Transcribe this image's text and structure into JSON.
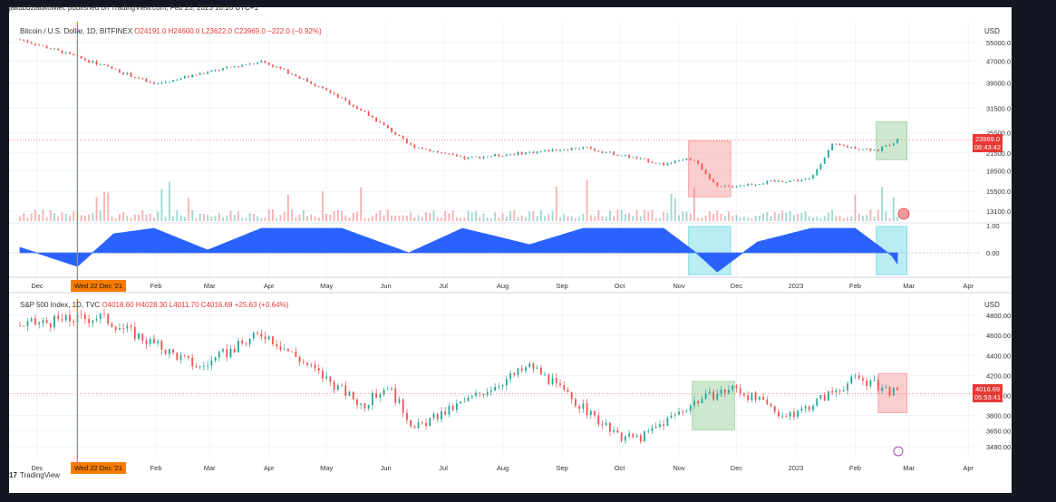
{
  "header": {
    "published": "jakubdzladkowiec published on TradingView.com, Feb 23, 2023 16:16 UTC+1"
  },
  "footer": {
    "brand": "TradingView"
  },
  "marker": {
    "date_label": "Wed 22 Dec '21"
  },
  "colors": {
    "up": "#26a69a",
    "down": "#ef5350",
    "osc": "#2962ff",
    "marker": "#f57c00",
    "red_box": "#f8a5a5",
    "green_box": "#a5d6a7",
    "cyan_box": "#80deea"
  },
  "time_axis": [
    "Dec",
    "Feb",
    "Mar",
    "Apr",
    "May",
    "Jun",
    "Jul",
    "Aug",
    "Sep",
    "Oct",
    "Nov",
    "Dec",
    "2023",
    "Feb",
    "Mar",
    "Apr"
  ],
  "panes": [
    {
      "legend": {
        "name": "Bitcoin / U.S. Dollar, 1D, BITFINEX",
        "o": "O24191.0",
        "h": "H24600.0",
        "l": "L23622.0",
        "c": "C23969.0",
        "chg": "−222.0 (−0.92%)"
      },
      "currency": "USD",
      "last_price": "23969.0",
      "countdown": "08:43:42"
    },
    {
      "legend": {
        "name": "S&P 500 Index, 1D, TVC",
        "o": "O4018.60",
        "h": "H4028.30",
        "l": "L4011.70",
        "c": "C4016.69",
        "chg": "+25.63 (+0.64%)"
      },
      "currency": "USD",
      "last_price": "4016.69",
      "countdown": "05:53:41"
    }
  ],
  "chart_data": [
    {
      "type": "candlestick",
      "title": "Bitcoin / U.S. Dollar, 1D, BITFINEX",
      "scale": "log",
      "y_ticks": [
        "55000.0",
        "47000.0",
        "39000.0",
        "31500.0",
        "25500.0",
        "21500.0",
        "18500.0",
        "15500.0",
        "13100.0"
      ],
      "x": [
        "2021-11-22",
        "2021-12-22",
        "2022-01-31",
        "2022-03-28",
        "2022-05-09",
        "2022-06-13",
        "2022-07-11",
        "2022-09-12",
        "2022-10-24",
        "2022-11-08",
        "2022-11-21",
        "2022-12-19",
        "2023-01-09",
        "2023-01-20",
        "2023-02-13",
        "2023-02-23"
      ],
      "close": [
        56500,
        48500,
        38500,
        47000,
        34000,
        23000,
        20500,
        22500,
        19500,
        20500,
        16000,
        16800,
        17200,
        23000,
        22000,
        23969
      ]
    },
    {
      "type": "line",
      "title": "",
      "y_ticks": [
        "1.00",
        "0.00"
      ],
      "ylim": [
        -0.8,
        1.0
      ],
      "x": [
        "2021-11-22",
        "2021-12-22",
        "2022-01-10",
        "2022-01-31",
        "2022-02-28",
        "2022-03-28",
        "2022-05-09",
        "2022-06-13",
        "2022-07-11",
        "2022-08-15",
        "2022-09-12",
        "2022-10-24",
        "2022-11-10",
        "2022-11-21",
        "2022-12-12",
        "2023-01-09",
        "2023-02-01",
        "2023-02-20",
        "2023-02-23"
      ],
      "values": [
        0.2,
        -0.5,
        0.7,
        0.9,
        0.1,
        0.9,
        0.9,
        0.0,
        0.9,
        0.3,
        0.9,
        0.9,
        0.0,
        -0.7,
        0.4,
        0.9,
        0.9,
        -0.1,
        -0.4
      ]
    },
    {
      "type": "candlestick",
      "title": "S&P 500 Index, 1D, TVC",
      "y_ticks": [
        "4800.00",
        "4600.00",
        "4400.00",
        "4200.00",
        "4000.00",
        "3800.00",
        "3650.00",
        "3490.00"
      ],
      "x": [
        "2021-11-22",
        "2022-01-03",
        "2022-02-24",
        "2022-03-29",
        "2022-05-20",
        "2022-06-02",
        "2022-06-16",
        "2022-08-16",
        "2022-09-30",
        "2022-10-12",
        "2022-11-10",
        "2022-11-30",
        "2022-12-28",
        "2023-02-02",
        "2023-02-23"
      ],
      "close": [
        4700,
        4790,
        4280,
        4630,
        3900,
        4100,
        3670,
        4300,
        3590,
        3580,
        3950,
        4080,
        3780,
        4180,
        4016.69
      ]
    }
  ]
}
